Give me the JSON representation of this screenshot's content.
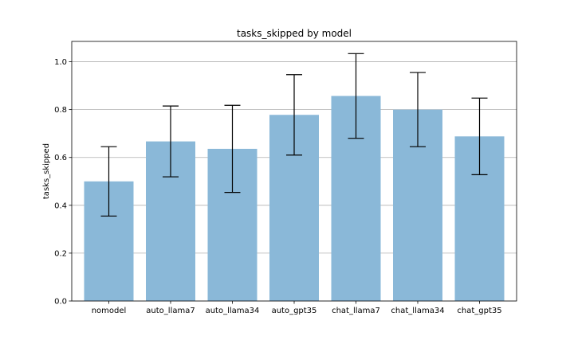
{
  "chart_data": {
    "type": "bar",
    "title": "tasks_skipped by model",
    "xlabel": "",
    "ylabel": "tasks_skipped",
    "categories": [
      "nomodel",
      "auto_llama7",
      "auto_llama34",
      "auto_gpt35",
      "chat_llama7",
      "chat_llama34",
      "chat_gpt35"
    ],
    "values": [
      0.5,
      0.667,
      0.636,
      0.778,
      0.857,
      0.8,
      0.688
    ],
    "errors": [
      0.145,
      0.148,
      0.182,
      0.168,
      0.177,
      0.155,
      0.16
    ],
    "ylim": [
      0,
      1.085
    ],
    "yticks": [
      0.0,
      0.2,
      0.4,
      0.6,
      0.8,
      1.0
    ],
    "ytick_labels": [
      "0.0",
      "0.2",
      "0.4",
      "0.6",
      "0.8",
      "1.0"
    ],
    "grid": "y",
    "bar_color": "#8ab8d8",
    "error_color": "#000000"
  }
}
